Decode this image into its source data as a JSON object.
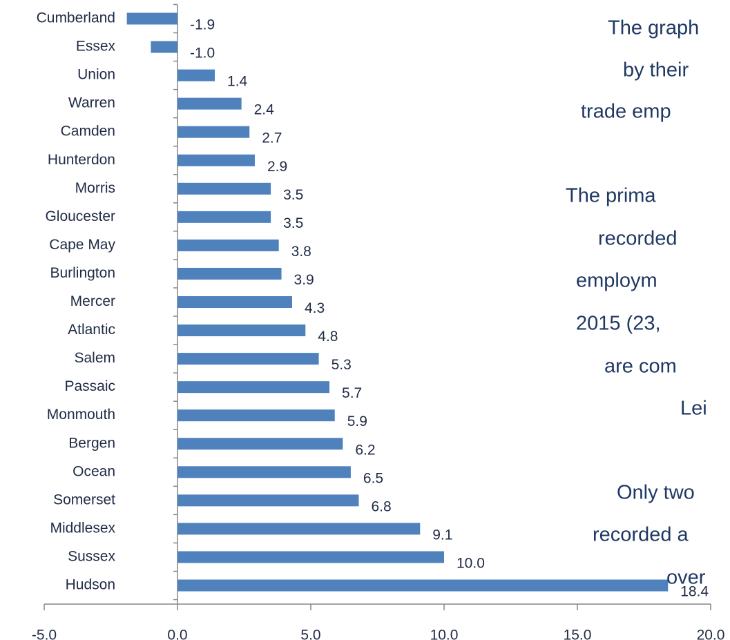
{
  "chart_data": {
    "type": "bar",
    "orientation": "horizontal",
    "categories": [
      "Cumberland",
      "Essex",
      "Union",
      "Warren",
      "Camden",
      "Hunterdon",
      "Morris",
      "Gloucester",
      "Cape May",
      "Burlington",
      "Mercer",
      "Atlantic",
      "Salem",
      "Passaic",
      "Monmouth",
      "Bergen",
      "Ocean",
      "Somerset",
      "Middlesex",
      "Sussex",
      "Hudson"
    ],
    "values": [
      -1.9,
      -1.0,
      1.4,
      2.4,
      2.7,
      2.9,
      3.5,
      3.5,
      3.8,
      3.9,
      4.3,
      4.8,
      5.3,
      5.7,
      5.9,
      6.2,
      6.5,
      6.8,
      9.1,
      10.0,
      18.4
    ],
    "value_labels": [
      "-1.9",
      "-1.0",
      "1.4",
      "2.4",
      "2.7",
      "2.9",
      "3.5",
      "3.5",
      "3.8",
      "3.9",
      "4.3",
      "4.8",
      "5.3",
      "5.7",
      "5.9",
      "6.2",
      "6.5",
      "6.8",
      "9.1",
      "10.0",
      "18.4"
    ],
    "color": "#4f81bd",
    "negative_label_color": "#ff0000",
    "label_color": "#1f2a44",
    "xlim": [
      -5,
      20
    ],
    "xticks": [
      {
        "value": -5,
        "label": "-5.0"
      },
      {
        "value": 0,
        "label": "0.0"
      },
      {
        "value": 5,
        "label": "5.0"
      },
      {
        "value": 10,
        "label": "10.0"
      },
      {
        "value": 15,
        "label": "15.0"
      },
      {
        "value": 20,
        "label": "20.0"
      }
    ],
    "grid": false,
    "annotations": [
      "The graph",
      "by their",
      "trade emp",
      "The prima",
      "recorded",
      "employm",
      "2015 (23,",
      "are com",
      "Lei",
      "Only two",
      "recorded a",
      "over"
    ]
  }
}
